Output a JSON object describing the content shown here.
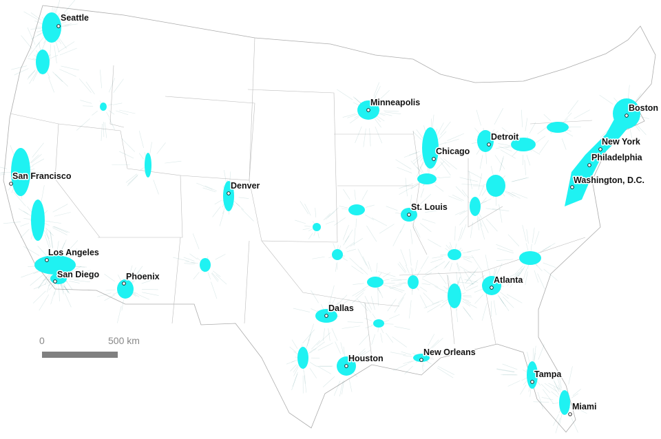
{
  "map": {
    "colors": {
      "urban": "#1ff2f2",
      "network": "#1f6f6f",
      "border": "#999999",
      "label": "#111111",
      "scale_bar": "#808080"
    },
    "cities": [
      {
        "name": "Seattle"
      },
      {
        "name": "San Francisco"
      },
      {
        "name": "Los Angeles"
      },
      {
        "name": "San Diego"
      },
      {
        "name": "Phoenix"
      },
      {
        "name": "Denver"
      },
      {
        "name": "Minneapolis"
      },
      {
        "name": "Chicago"
      },
      {
        "name": "Detroit"
      },
      {
        "name": "St. Louis"
      },
      {
        "name": "Dallas"
      },
      {
        "name": "Houston"
      },
      {
        "name": "New Orleans"
      },
      {
        "name": "Atlanta"
      },
      {
        "name": "Tampa"
      },
      {
        "name": "Miami"
      },
      {
        "name": "Boston"
      },
      {
        "name": "New York"
      },
      {
        "name": "Philadelphia"
      },
      {
        "name": "Washington, D.C."
      }
    ],
    "scale": {
      "start_label": "0",
      "end_label": "500 km"
    }
  }
}
